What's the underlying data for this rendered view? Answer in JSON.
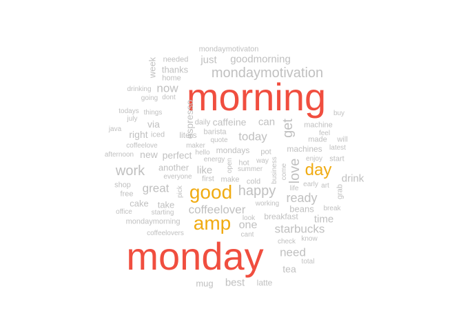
{
  "colors": {
    "high": "#f04e3f",
    "mid": "#f0ab12",
    "low": "#c0c0c0"
  },
  "words": [
    {
      "text": "morning",
      "tier": "high"
    },
    {
      "text": "monday",
      "tier": "high"
    },
    {
      "text": "good",
      "tier": "mid"
    },
    {
      "text": "amp",
      "tier": "mid"
    },
    {
      "text": "day",
      "tier": "mid"
    },
    {
      "text": "mondaymotivaton",
      "tier": "low"
    },
    {
      "text": "needed",
      "tier": "low"
    },
    {
      "text": "just",
      "tier": "low"
    },
    {
      "text": "goodmorning",
      "tier": "low"
    },
    {
      "text": "week",
      "tier": "low"
    },
    {
      "text": "thanks",
      "tier": "low"
    },
    {
      "text": "home",
      "tier": "low"
    },
    {
      "text": "mondaymotivation",
      "tier": "low"
    },
    {
      "text": "now",
      "tier": "low"
    },
    {
      "text": "drinking",
      "tier": "low"
    },
    {
      "text": "going",
      "tier": "low"
    },
    {
      "text": "dont",
      "tier": "low"
    },
    {
      "text": "espresso",
      "tier": "low"
    },
    {
      "text": "buy",
      "tier": "low"
    },
    {
      "text": "todays",
      "tier": "low"
    },
    {
      "text": "things",
      "tier": "low"
    },
    {
      "text": "july",
      "tier": "low"
    },
    {
      "text": "via",
      "tier": "low"
    },
    {
      "text": "daily",
      "tier": "low"
    },
    {
      "text": "caffeine",
      "tier": "low"
    },
    {
      "text": "can",
      "tier": "low"
    },
    {
      "text": "get",
      "tier": "low"
    },
    {
      "text": "machine",
      "tier": "low"
    },
    {
      "text": "java",
      "tier": "low"
    },
    {
      "text": "right",
      "tier": "low"
    },
    {
      "text": "iced",
      "tier": "low"
    },
    {
      "text": "liters",
      "tier": "low"
    },
    {
      "text": "barista",
      "tier": "low"
    },
    {
      "text": "today",
      "tier": "low"
    },
    {
      "text": "feel",
      "tier": "low"
    },
    {
      "text": "quote",
      "tier": "low"
    },
    {
      "text": "made",
      "tier": "low"
    },
    {
      "text": "will",
      "tier": "low"
    },
    {
      "text": "coffeelove",
      "tier": "low"
    },
    {
      "text": "maker",
      "tier": "low"
    },
    {
      "text": "hello",
      "tier": "low"
    },
    {
      "text": "mondays",
      "tier": "low"
    },
    {
      "text": "pot",
      "tier": "low"
    },
    {
      "text": "machines",
      "tier": "low"
    },
    {
      "text": "latest",
      "tier": "low"
    },
    {
      "text": "afternoon",
      "tier": "low"
    },
    {
      "text": "new",
      "tier": "low"
    },
    {
      "text": "perfect",
      "tier": "low"
    },
    {
      "text": "energy",
      "tier": "low"
    },
    {
      "text": "open",
      "tier": "low"
    },
    {
      "text": "way",
      "tier": "low"
    },
    {
      "text": "come",
      "tier": "low"
    },
    {
      "text": "love",
      "tier": "low"
    },
    {
      "text": "enjoy",
      "tier": "low"
    },
    {
      "text": "start",
      "tier": "low"
    },
    {
      "text": "work",
      "tier": "low"
    },
    {
      "text": "another",
      "tier": "low"
    },
    {
      "text": "like",
      "tier": "low"
    },
    {
      "text": "hot",
      "tier": "low"
    },
    {
      "text": "summer",
      "tier": "low"
    },
    {
      "text": "business",
      "tier": "low"
    },
    {
      "text": "drink",
      "tier": "low"
    },
    {
      "text": "everyone",
      "tier": "low"
    },
    {
      "text": "first",
      "tier": "low"
    },
    {
      "text": "make",
      "tier": "low"
    },
    {
      "text": "cold",
      "tier": "low"
    },
    {
      "text": "early",
      "tier": "low"
    },
    {
      "text": "art",
      "tier": "low"
    },
    {
      "text": "grab",
      "tier": "low"
    },
    {
      "text": "shop",
      "tier": "low"
    },
    {
      "text": "great",
      "tier": "low"
    },
    {
      "text": "pick",
      "tier": "low"
    },
    {
      "text": "happy",
      "tier": "low"
    },
    {
      "text": "life",
      "tier": "low"
    },
    {
      "text": "free",
      "tier": "low"
    },
    {
      "text": "ready",
      "tier": "low"
    },
    {
      "text": "cake",
      "tier": "low"
    },
    {
      "text": "take",
      "tier": "low"
    },
    {
      "text": "coffeelover",
      "tier": "low"
    },
    {
      "text": "working",
      "tier": "low"
    },
    {
      "text": "beans",
      "tier": "low"
    },
    {
      "text": "break",
      "tier": "low"
    },
    {
      "text": "office",
      "tier": "low"
    },
    {
      "text": "starting",
      "tier": "low"
    },
    {
      "text": "breakfast",
      "tier": "low"
    },
    {
      "text": "time",
      "tier": "low"
    },
    {
      "text": "mondaymorning",
      "tier": "low"
    },
    {
      "text": "look",
      "tier": "low"
    },
    {
      "text": "one",
      "tier": "low"
    },
    {
      "text": "starbucks",
      "tier": "low"
    },
    {
      "text": "coffeelovers",
      "tier": "low"
    },
    {
      "text": "cant",
      "tier": "low"
    },
    {
      "text": "know",
      "tier": "low"
    },
    {
      "text": "check",
      "tier": "low"
    },
    {
      "text": "need",
      "tier": "low"
    },
    {
      "text": "total",
      "tier": "low"
    },
    {
      "text": "tea",
      "tier": "low"
    },
    {
      "text": "mug",
      "tier": "low"
    },
    {
      "text": "best",
      "tier": "low"
    },
    {
      "text": "latte",
      "tier": "low"
    }
  ]
}
